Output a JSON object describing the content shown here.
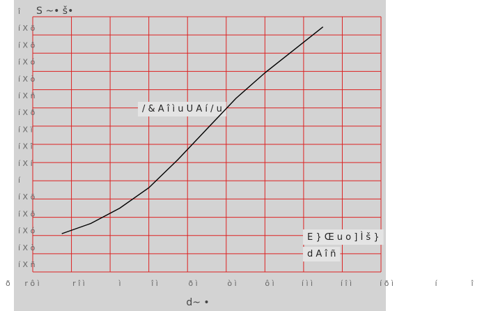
{
  "chart_data": {
    "type": "line",
    "title": "",
    "xlabel": "d~ •",
    "ylabel": "S ~• š•",
    "x_tick_labels": [
      "r ô ì",
      "r î ì",
      "ì",
      "î ì",
      "ð ì",
      "ò ì",
      "ô ì",
      "í ì ì",
      "í î ì",
      "í ð ì",
      "í",
      "î"
    ],
    "y_tick_labels": [
      "î",
      "í X õ",
      "í X ô",
      "í X ó",
      "í X ò",
      "í X ñ",
      "í X ð",
      "í X ï",
      "í X î",
      "í X í",
      "í",
      "í X õ",
      "í X ô",
      "í X ó",
      "í X ò",
      "í X ñ"
    ],
    "corner_label": "ð",
    "annotations": [
      {
        "text": "/ & A î ì u   U A í / u"
      },
      {
        "text": "E } Œ u   o ] Ì       š }"
      },
      {
        "text": "d A î ñ"
      }
    ],
    "series": [
      {
        "color": "#000000",
        "x": [
          -60,
          -40,
          -20,
          0,
          20,
          40,
          60,
          80,
          100,
          120
        ],
        "y": [
          1.25,
          1.29,
          1.35,
          1.43,
          1.54,
          1.66,
          1.78,
          1.88,
          1.97,
          2.06
        ]
      }
    ],
    "grid": true,
    "grid_color": "#dd2222",
    "xlim": [
      -80,
      160
    ],
    "ylim": [
      1.1,
      2.1
    ]
  }
}
